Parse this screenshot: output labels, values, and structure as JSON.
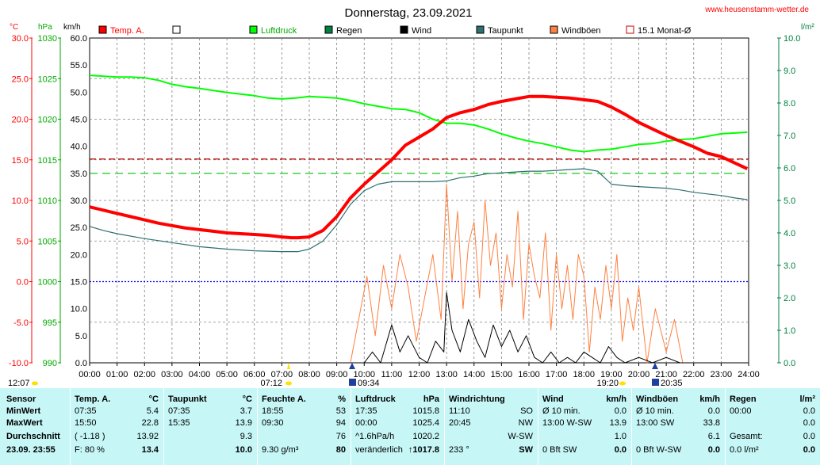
{
  "title": "Donnerstag, 23.09.2021",
  "site": "www.heusenstamm-wetter.de",
  "colors": {
    "temp": "#ff0000",
    "pressure": "#00ff00",
    "rain": "#008040",
    "wind": "#000000",
    "dewpoint": "#2f6f6f",
    "gust": "#ff8040",
    "month_avg": "#c00000",
    "grid": "#808080",
    "zero_line": "#0000ff",
    "stats_bg": "#c6f6f6"
  },
  "legend": [
    {
      "label": "Temp. A.",
      "color": "#ff0000",
      "style": "filled"
    },
    {
      "label": "",
      "color": "#ffffff",
      "style": "box"
    },
    {
      "label": "Luftdruck",
      "color": "#00ff00",
      "style": "filled"
    },
    {
      "label": "Regen",
      "color": "#008040",
      "style": "filled"
    },
    {
      "label": "Wind",
      "color": "#000000",
      "style": "filled"
    },
    {
      "label": "Taupunkt",
      "color": "#2f6f6f",
      "style": "filled"
    },
    {
      "label": "Windböen",
      "color": "#ff8040",
      "style": "filled"
    },
    {
      "label": "15.1 Monat-Ø",
      "color": "#c00000",
      "style": "outline"
    }
  ],
  "axis_units": {
    "temp": "°C",
    "pressure": "hPa",
    "wind": "km/h",
    "rain": "l/m²"
  },
  "chart_data": {
    "type": "line",
    "x_ticks": [
      "00:00",
      "01:00",
      "02:00",
      "03:00",
      "04:00",
      "05:00",
      "06:00",
      "07:00",
      "08:00",
      "09:00",
      "10:00",
      "11:00",
      "12:00",
      "13:00",
      "14:00",
      "15:00",
      "16:00",
      "17:00",
      "18:00",
      "19:00",
      "20:00",
      "21:00",
      "22:00",
      "23:00",
      "24:00"
    ],
    "temp_ticks": [
      "30.0",
      "25.0",
      "20.0",
      "15.0",
      "10.0",
      "5.0",
      "0.0",
      "-5.0",
      "-10.0"
    ],
    "pressure_ticks": [
      "1030",
      "1025",
      "1020",
      "1015",
      "1010",
      "1005",
      "1000",
      "995",
      "990"
    ],
    "wind_ticks": [
      "60.0",
      "55.0",
      "50.0",
      "45.0",
      "40.0",
      "35.0",
      "30.0",
      "25.0",
      "20.0",
      "15.0",
      "10.0",
      "5.0",
      "0.0"
    ],
    "rain_ticks": [
      "10.0",
      "9.0",
      "8.0",
      "7.0",
      "6.0",
      "5.0",
      "4.0",
      "3.0",
      "2.0",
      "1.0",
      "0.0"
    ],
    "temp_range": [
      -10,
      30
    ],
    "wind_range": [
      0,
      60
    ],
    "pressure_range": [
      990,
      1030
    ],
    "rain_range": [
      0,
      10
    ],
    "month_avg_temp": 15.1,
    "series": [
      {
        "name": "Temp. A.",
        "axis": "temp",
        "x": [
          0,
          0.5,
          1,
          1.5,
          2,
          2.5,
          3,
          3.5,
          4,
          4.5,
          5,
          5.5,
          6,
          6.5,
          7,
          7.35,
          7.6,
          8,
          8.5,
          9,
          9.5,
          10,
          10.5,
          11,
          11.5,
          12,
          12.5,
          13,
          13.5,
          14,
          14.5,
          15,
          15.5,
          16,
          16.5,
          17,
          17.5,
          18,
          18.5,
          19,
          19.5,
          20,
          20.5,
          21,
          21.5,
          22,
          22.5,
          23,
          23.5,
          23.95
        ],
        "y": [
          9.2,
          8.8,
          8.4,
          8.0,
          7.6,
          7.2,
          6.9,
          6.6,
          6.4,
          6.2,
          6.0,
          5.9,
          5.8,
          5.7,
          5.5,
          5.4,
          5.4,
          5.5,
          6.3,
          8.0,
          10.3,
          12.0,
          13.5,
          15.0,
          16.8,
          17.8,
          18.8,
          20.2,
          20.8,
          21.2,
          21.8,
          22.2,
          22.5,
          22.8,
          22.8,
          22.7,
          22.6,
          22.4,
          22.2,
          21.5,
          20.6,
          19.6,
          18.8,
          18.0,
          17.3,
          16.6,
          15.8,
          15.4,
          14.6,
          13.9
        ]
      },
      {
        "name": "Taupunkt",
        "axis": "temp",
        "x": [
          0,
          0.5,
          1,
          2,
          3,
          4,
          5,
          6,
          7,
          7.35,
          7.6,
          8,
          8.5,
          9,
          9.5,
          10,
          10.5,
          11,
          11.5,
          12,
          12.5,
          13,
          13.5,
          14,
          14.5,
          15,
          15.5,
          16,
          16.5,
          17,
          17.5,
          18,
          18.5,
          19,
          19.5,
          20,
          20.5,
          21,
          21.5,
          22,
          22.5,
          23,
          23.5,
          23.95
        ],
        "y": [
          6.8,
          6.3,
          5.9,
          5.3,
          4.8,
          4.3,
          4.0,
          3.8,
          3.7,
          3.7,
          3.7,
          4.0,
          5.0,
          7.0,
          9.5,
          11.2,
          12.0,
          12.3,
          12.3,
          12.3,
          12.3,
          12.4,
          12.8,
          13.0,
          13.3,
          13.4,
          13.5,
          13.6,
          13.6,
          13.7,
          13.8,
          13.9,
          13.6,
          12.0,
          11.8,
          11.7,
          11.6,
          11.5,
          11.3,
          11.0,
          10.8,
          10.6,
          10.3,
          10.1
        ]
      },
      {
        "name": "Luftdruck",
        "axis": "pressure",
        "x": [
          0,
          0.5,
          1,
          1.5,
          2,
          2.5,
          3,
          3.5,
          4,
          5,
          6,
          6.5,
          7,
          7.5,
          8,
          9,
          9.5,
          10,
          10.5,
          11,
          11.5,
          12,
          12.5,
          13,
          13.5,
          14,
          14.5,
          15,
          15.5,
          16,
          16.5,
          17,
          17.5,
          18,
          18.5,
          19,
          19.5,
          20,
          20.5,
          21,
          21.5,
          22,
          22.5,
          23,
          23.5,
          23.95
        ],
        "y": [
          1025.4,
          1025.3,
          1025.2,
          1025.2,
          1025.1,
          1024.8,
          1024.3,
          1024.0,
          1023.8,
          1023.3,
          1022.9,
          1022.6,
          1022.5,
          1022.6,
          1022.8,
          1022.6,
          1022.3,
          1021.9,
          1021.6,
          1021.3,
          1021.2,
          1020.8,
          1020.0,
          1019.5,
          1019.5,
          1019.3,
          1018.8,
          1018.2,
          1017.7,
          1017.3,
          1017.0,
          1016.6,
          1016.2,
          1016.0,
          1016.2,
          1016.3,
          1016.6,
          1016.9,
          1017.0,
          1017.3,
          1017.5,
          1017.6,
          1017.9,
          1018.2,
          1018.3,
          1018.4
        ]
      },
      {
        "name": "Wind",
        "axis": "wind",
        "x": [
          9.5,
          10,
          10.3,
          10.6,
          11,
          11.3,
          11.6,
          12,
          12.3,
          12.6,
          12.9,
          13.0,
          13.2,
          13.5,
          13.8,
          14.1,
          14.4,
          14.7,
          15.0,
          15.3,
          15.6,
          15.9,
          16.2,
          16.5,
          16.8,
          17.1,
          17.4,
          17.7,
          18.0,
          18.3,
          18.6,
          18.9,
          19.2,
          19.5,
          20,
          20.5,
          21,
          21.5,
          22
        ],
        "y": [
          0,
          0,
          2,
          0,
          7,
          2,
          5,
          1,
          0,
          4,
          2,
          13,
          6,
          2,
          8,
          4,
          1,
          7,
          3,
          6,
          2,
          5,
          1,
          0,
          2,
          0,
          1,
          0,
          2,
          1,
          0,
          3,
          1,
          0,
          1,
          0,
          1,
          0,
          0
        ]
      },
      {
        "name": "Windböen",
        "axis": "wind",
        "x": [
          9.5,
          9.8,
          10.1,
          10.4,
          10.7,
          11.0,
          11.3,
          11.6,
          11.9,
          12.2,
          12.5,
          12.8,
          13.0,
          13.2,
          13.4,
          13.6,
          13.8,
          14.0,
          14.2,
          14.4,
          14.6,
          14.8,
          15.0,
          15.2,
          15.4,
          15.6,
          15.8,
          16.0,
          16.2,
          16.4,
          16.6,
          16.8,
          17.0,
          17.2,
          17.4,
          17.6,
          17.8,
          18.0,
          18.2,
          18.4,
          18.6,
          18.8,
          19.0,
          19.2,
          19.4,
          19.6,
          19.8,
          20.0,
          20.3,
          20.6,
          21.0,
          21.3,
          21.6,
          22.0
        ],
        "y": [
          0,
          8,
          16,
          5,
          18,
          10,
          20,
          14,
          4,
          12,
          20,
          8,
          33,
          15,
          28,
          10,
          22,
          26,
          12,
          30,
          18,
          24,
          10,
          20,
          14,
          28,
          8,
          22,
          16,
          12,
          24,
          6,
          20,
          10,
          18,
          8,
          20,
          16,
          2,
          14,
          8,
          18,
          10,
          20,
          4,
          12,
          6,
          14,
          0,
          10,
          2,
          8,
          0,
          0
        ]
      }
    ]
  },
  "markers": {
    "left_time": "12:07",
    "sunrise": "07:12",
    "max_wind_time": "09:34",
    "sunset": "19:20",
    "moon_time": "20:35"
  },
  "stats": {
    "rows": [
      "MinWert",
      "MaxWert",
      "Durchschnitt"
    ],
    "sensor_header": "Sensor",
    "date_time": "23.09. 23:55",
    "temp": {
      "header": "Temp. A.",
      "unit": "°C",
      "min": [
        "07:35",
        "5.4"
      ],
      "max": [
        "15:50",
        "22.8"
      ],
      "avg": [
        "( -1.18 )",
        "13.92"
      ],
      "cur": [
        "F: 80 %",
        "13.4"
      ]
    },
    "dew": {
      "header": "Taupunkt",
      "unit": "°C",
      "min": [
        "07:35",
        "3.7"
      ],
      "max": [
        "15:35",
        "13.9"
      ],
      "avg": [
        "",
        "9.3"
      ],
      "cur": [
        "",
        "10.0"
      ]
    },
    "hum": {
      "header": "Feuchte A.",
      "unit": "%",
      "min": [
        "18:55",
        "53"
      ],
      "max": [
        "09:30",
        "94"
      ],
      "avg": [
        "",
        "76"
      ],
      "cur": [
        "9.30 g/m³",
        "80"
      ]
    },
    "press": {
      "header": "Luftdruck",
      "unit": "hPa",
      "min": [
        "17:35",
        "1015.8"
      ],
      "max": [
        "00:00",
        "1025.4"
      ],
      "avg": [
        "^1.6hPa/h",
        "1020.2"
      ],
      "cur": [
        "veränderlich",
        "↑1017.8"
      ]
    },
    "wdir": {
      "header": "Windrichtung",
      "unit": "",
      "min": [
        "11:10",
        "SO"
      ],
      "max": [
        "20:45",
        "NW"
      ],
      "avg": [
        "",
        "W-SW"
      ],
      "cur": [
        "233 °",
        "SW"
      ]
    },
    "wind": {
      "header": "Wind",
      "unit": "km/h",
      "min": [
        "Ø 10 min.",
        "0.0"
      ],
      "max": [
        "13:00   W-SW",
        "13.9"
      ],
      "avg": [
        "",
        "1.0"
      ],
      "cur": [
        "0 Bft SW",
        "0.0"
      ]
    },
    "gust": {
      "header": "Windböen",
      "unit": "km/h",
      "min": [
        "Ø 10 min.",
        "0.0"
      ],
      "max": [
        "13:00      SW",
        "33.8"
      ],
      "avg": [
        "",
        "6.1"
      ],
      "cur": [
        "0 Bft W-SW",
        "0.0"
      ]
    },
    "rain": {
      "header": "Regen",
      "unit": "l/m²",
      "min": [
        "00:00",
        "0.0"
      ],
      "max": [
        "",
        "0.0"
      ],
      "avg": [
        "Gesamt:",
        "0.0"
      ],
      "cur": [
        "0.0 l/m²",
        "0.0"
      ]
    }
  }
}
